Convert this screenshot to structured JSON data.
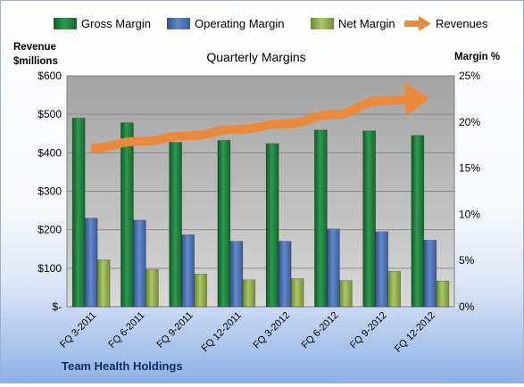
{
  "chart_data": {
    "type": "bar",
    "title": "Quarterly Margins",
    "company": "Team Health Holdings",
    "ylabel_left": [
      "Revenue",
      "$millions"
    ],
    "ylabel_right": "Margin %",
    "ylim_left": [
      0,
      600
    ],
    "ylim_right": [
      0,
      25
    ],
    "yticks_left": [
      "$-",
      "$100",
      "$200",
      "$300",
      "$400",
      "$500",
      "$600"
    ],
    "yticks_right": [
      "0%",
      "5%",
      "10%",
      "15%",
      "20%",
      "25%"
    ],
    "categories": [
      "FQ 3-2011",
      "FQ 6-2011",
      "FQ 9-2011",
      "FQ 12-2011",
      "FQ 3-2012",
      "FQ 6-2012",
      "FQ 9-2012",
      "FQ 12-2012"
    ],
    "series": [
      {
        "name": "Gross Margin",
        "axis": "left",
        "color": "#1e7b3c",
        "values": [
          490,
          478,
          427,
          432,
          424,
          459,
          457,
          445
        ]
      },
      {
        "name": "Operating Margin",
        "axis": "left",
        "color": "#4a6fb1",
        "values": [
          230,
          225,
          187,
          170,
          170,
          202,
          195,
          173
        ]
      },
      {
        "name": "Net Margin",
        "axis": "left",
        "color": "#8fad47",
        "values": [
          122,
          97,
          85,
          70,
          73,
          68,
          92,
          67
        ]
      },
      {
        "name": "Revenues",
        "type": "arrow",
        "axis": "right",
        "color": "#ec8a3b",
        "values": [
          17.2,
          17.9,
          18.5,
          19.2,
          19.8,
          20.8,
          22.3,
          22.6
        ]
      }
    ],
    "grid": true,
    "legend": "top"
  }
}
